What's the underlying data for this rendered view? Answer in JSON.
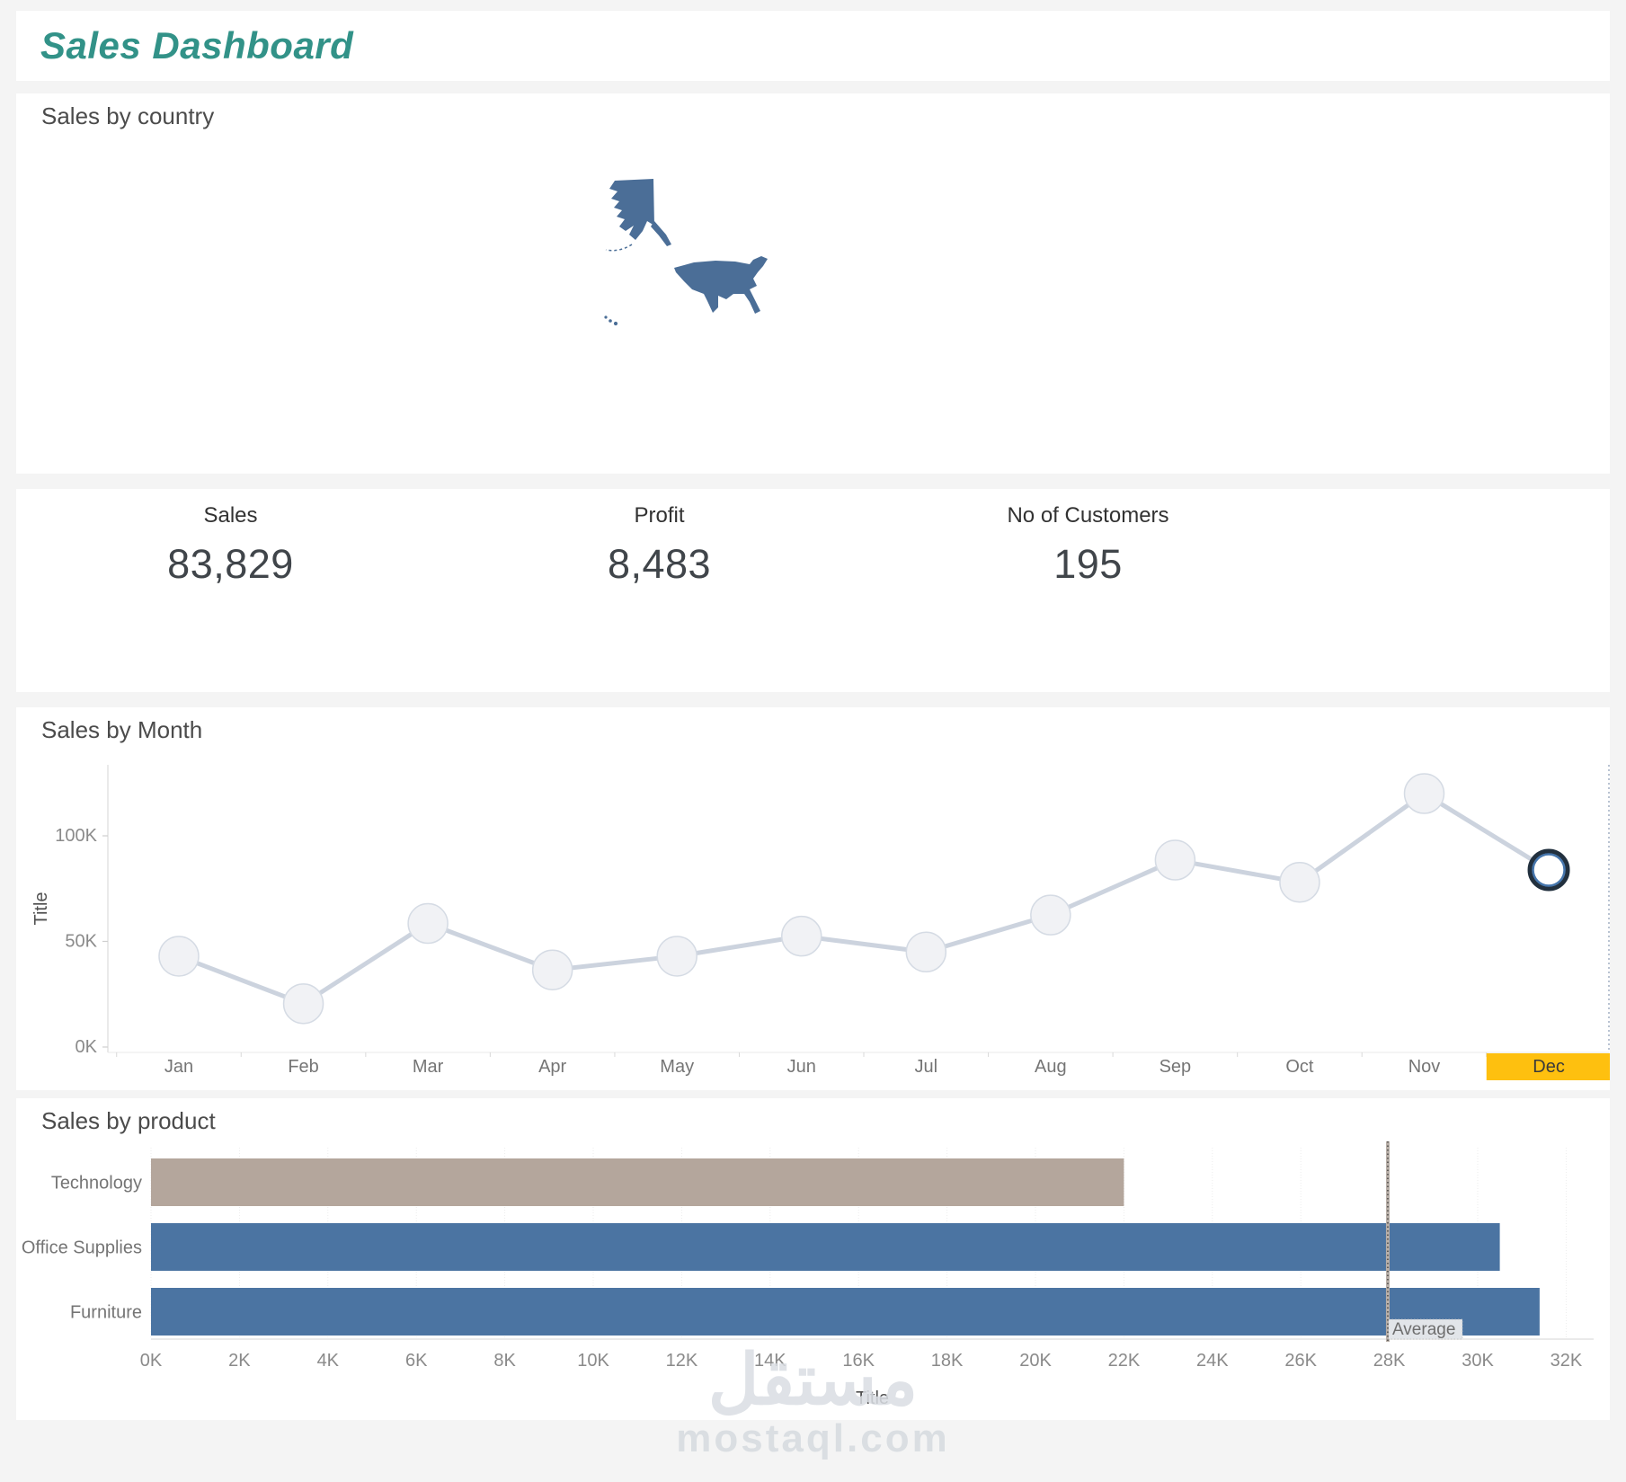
{
  "title": "Sales Dashboard",
  "sections": {
    "country": {
      "header": "Sales by country",
      "highlighted_country": "United States"
    },
    "month": {
      "header": "Sales by Month"
    },
    "product": {
      "header": "Sales by product"
    }
  },
  "kpis": [
    {
      "label": "Sales",
      "value": "83,829"
    },
    {
      "label": "Profit",
      "value": "8,483"
    },
    {
      "label": "No of Customers",
      "value": "195"
    }
  ],
  "chart_data": [
    {
      "type": "line",
      "title": "Sales by Month",
      "x": [
        "Jan",
        "Feb",
        "Mar",
        "Apr",
        "May",
        "Jun",
        "Jul",
        "Aug",
        "Sep",
        "Oct",
        "Nov",
        "Dec"
      ],
      "values": [
        43000,
        20500,
        58500,
        36500,
        43000,
        52500,
        45000,
        62500,
        88500,
        78000,
        120000,
        83829
      ],
      "ylabel": "Title",
      "yticks": [
        {
          "label": "0K",
          "value": 0
        },
        {
          "label": "50K",
          "value": 50000
        },
        {
          "label": "100K",
          "value": 100000
        }
      ],
      "ylim": [
        0,
        133000
      ],
      "grid": false,
      "highlighted_x": "Dec",
      "selected_point": "Dec"
    },
    {
      "type": "bar",
      "title": "Sales by product",
      "orientation": "horizontal",
      "categories": [
        "Technology",
        "Office Supplies",
        "Furniture"
      ],
      "values": [
        22000,
        30500,
        31400
      ],
      "xlabel": "Title",
      "xticks": [
        {
          "label": "0K",
          "value": 0
        },
        {
          "label": "2K",
          "value": 2000
        },
        {
          "label": "4K",
          "value": 4000
        },
        {
          "label": "6K",
          "value": 6000
        },
        {
          "label": "8K",
          "value": 8000
        },
        {
          "label": "10K",
          "value": 10000
        },
        {
          "label": "12K",
          "value": 12000
        },
        {
          "label": "14K",
          "value": 14000
        },
        {
          "label": "16K",
          "value": 16000
        },
        {
          "label": "18K",
          "value": 18000
        },
        {
          "label": "20K",
          "value": 20000
        },
        {
          "label": "22K",
          "value": 22000
        },
        {
          "label": "24K",
          "value": 24000
        },
        {
          "label": "26K",
          "value": 26000
        },
        {
          "label": "28K",
          "value": 28000
        },
        {
          "label": "30K",
          "value": 30000
        },
        {
          "label": "32K",
          "value": 32000
        }
      ],
      "xlim": [
        0,
        33000
      ],
      "reference_line": {
        "label": "Average",
        "value": 27967
      }
    }
  ],
  "colors": {
    "accent_teal": "#329288",
    "map_fill": "#4b6e97",
    "line": "#ccd3de",
    "marker_fill": "#f1f2f5",
    "marker_stroke": "#d5dbe4",
    "selected_ring_outer": "#22303e",
    "selected_ring_inner": "#4676ad",
    "highlight_yellow": "#fec00f",
    "bar_blue": "#4b74a2",
    "bar_tan": "#b4a69c",
    "axis_text": "#8a8a8a",
    "category_text": "#757575",
    "ref_line_gray": "#b9b0a9"
  },
  "watermark": {
    "line1": "مستقل",
    "line2": "mostaql.com"
  }
}
